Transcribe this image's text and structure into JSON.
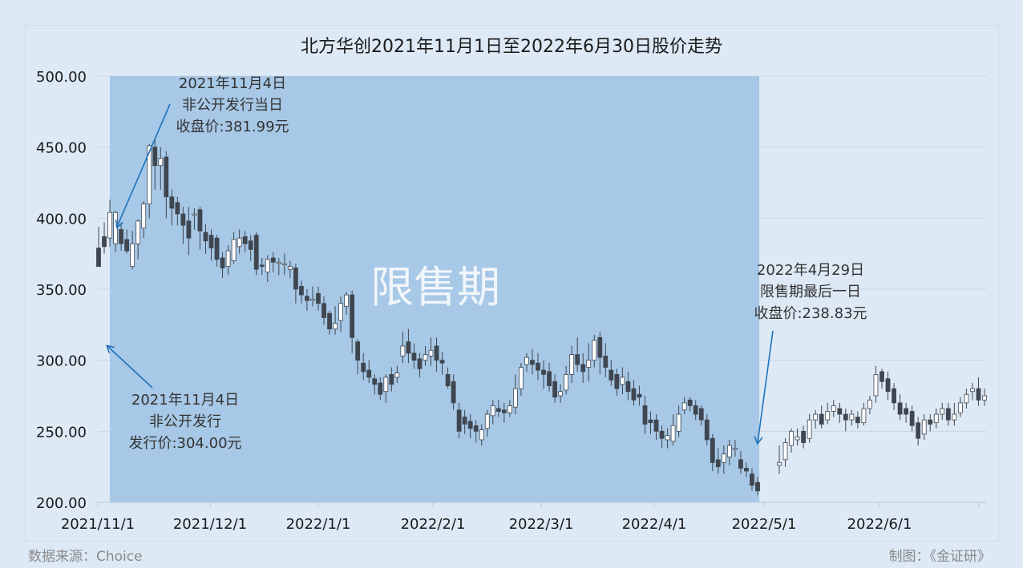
{
  "chart_data": {
    "type": "candlestick",
    "title": "北方华创2021年11月1日至2022年6月30日股价走势",
    "ylim": [
      200,
      500
    ],
    "yticks": [
      "500.00",
      "450.00",
      "400.00",
      "350.00",
      "300.00",
      "250.00",
      "200.00"
    ],
    "xticks": [
      "2021/11/1",
      "2021/12/1",
      "2022/1/1",
      "2022/2/1",
      "2022/3/1",
      "2022/4/1",
      "2022/5/1",
      "2022/6/1"
    ],
    "shaded_region": {
      "from": "2021/11/4",
      "to": "2022/4/29",
      "label": "限售期"
    },
    "annotations": [
      {
        "lines": [
          "2021年11月4日",
          "非公开发行当日",
          "收盘价:381.99元"
        ],
        "target": 381.99
      },
      {
        "lines": [
          "2021年11月4日",
          "非公开发行",
          "发行价:304.00元"
        ],
        "target": 304.0
      },
      {
        "lines": [
          "2022年4月29日",
          "限售期最后一日",
          "收盘价:238.83元"
        ],
        "target": 238.83
      }
    ],
    "candles": [
      [
        379,
        366,
        369,
        394
      ],
      [
        387,
        380,
        375,
        397
      ],
      [
        386,
        404,
        380,
        413
      ],
      [
        382,
        404,
        376,
        405
      ],
      [
        392,
        382,
        377,
        397
      ],
      [
        385,
        377,
        375,
        392
      ],
      [
        366,
        382,
        364,
        391
      ],
      [
        382,
        398,
        371,
        399
      ],
      [
        393,
        410,
        386,
        412
      ],
      [
        410,
        451,
        400,
        452
      ],
      [
        450,
        437,
        420,
        455
      ],
      [
        437,
        442,
        420,
        450
      ],
      [
        443,
        415,
        400,
        447
      ],
      [
        415,
        407,
        395,
        420
      ],
      [
        411,
        403,
        395,
        415
      ],
      [
        403,
        395,
        382,
        408
      ],
      [
        398,
        386,
        374,
        408
      ],
      [
        403,
        403,
        392,
        407
      ],
      [
        406,
        391,
        378,
        408
      ],
      [
        390,
        384,
        375,
        396
      ],
      [
        388,
        379,
        370,
        392
      ],
      [
        386,
        371,
        366,
        388
      ],
      [
        372,
        365,
        358,
        376
      ],
      [
        366,
        377,
        360,
        381
      ],
      [
        370,
        385,
        368,
        390
      ],
      [
        380,
        386,
        375,
        392
      ],
      [
        387,
        382,
        376,
        391
      ],
      [
        384,
        378,
        370,
        388
      ],
      [
        388,
        364,
        360,
        390
      ],
      [
        367,
        366,
        360,
        372
      ],
      [
        362,
        371,
        355,
        374
      ],
      [
        372,
        369,
        362,
        376
      ],
      [
        369,
        369,
        360,
        372
      ],
      [
        368,
        368,
        360,
        375
      ],
      [
        364,
        366,
        358,
        370
      ],
      [
        365,
        350,
        340,
        368
      ],
      [
        352,
        346,
        340,
        356
      ],
      [
        345,
        342,
        335,
        350
      ],
      [
        343,
        343,
        338,
        352
      ],
      [
        347,
        340,
        335,
        352
      ],
      [
        340,
        330,
        325,
        345
      ],
      [
        333,
        322,
        318,
        335
      ],
      [
        322,
        326,
        318,
        338
      ],
      [
        328,
        340,
        320,
        345
      ],
      [
        338,
        346,
        332,
        348
      ],
      [
        346,
        316,
        305,
        349
      ],
      [
        313,
        300,
        290,
        315
      ],
      [
        298,
        292,
        286,
        305
      ],
      [
        293,
        288,
        284,
        300
      ],
      [
        287,
        283,
        276,
        290
      ],
      [
        284,
        276,
        272,
        288
      ],
      [
        278,
        288,
        270,
        290
      ],
      [
        290,
        283,
        278,
        295
      ],
      [
        288,
        291,
        284,
        296
      ],
      [
        303,
        310,
        298,
        320
      ],
      [
        313,
        305,
        298,
        322
      ],
      [
        305,
        300,
        294,
        312
      ],
      [
        301,
        294,
        288,
        305
      ],
      [
        300,
        304,
        296,
        310
      ],
      [
        303,
        307,
        296,
        316
      ],
      [
        310,
        300,
        292,
        316
      ],
      [
        300,
        298,
        290,
        306
      ],
      [
        290,
        282,
        280,
        295
      ],
      [
        285,
        270,
        265,
        290
      ],
      [
        265,
        250,
        245,
        270
      ],
      [
        260,
        255,
        248,
        265
      ],
      [
        257,
        252,
        245,
        262
      ],
      [
        254,
        250,
        242,
        258
      ],
      [
        244,
        251,
        240,
        255
      ],
      [
        252,
        262,
        246,
        265
      ],
      [
        261,
        268,
        255,
        272
      ],
      [
        266,
        264,
        260,
        272
      ],
      [
        265,
        263,
        256,
        270
      ],
      [
        263,
        268,
        260,
        272
      ],
      [
        267,
        280,
        262,
        290
      ],
      [
        280,
        295,
        275,
        298
      ],
      [
        297,
        302,
        292,
        305
      ],
      [
        300,
        297,
        290,
        308
      ],
      [
        298,
        293,
        286,
        305
      ],
      [
        293,
        290,
        280,
        300
      ],
      [
        292,
        282,
        278,
        298
      ],
      [
        285,
        274,
        270,
        290
      ],
      [
        275,
        278,
        270,
        283
      ],
      [
        279,
        290,
        276,
        296
      ],
      [
        290,
        304,
        284,
        310
      ],
      [
        304,
        297,
        292,
        316
      ],
      [
        297,
        292,
        284,
        305
      ],
      [
        295,
        300,
        285,
        312
      ],
      [
        300,
        314,
        295,
        318
      ],
      [
        316,
        302,
        290,
        320
      ],
      [
        303,
        295,
        288,
        312
      ],
      [
        293,
        286,
        282,
        300
      ],
      [
        290,
        280,
        275,
        294
      ],
      [
        283,
        288,
        276,
        295
      ],
      [
        285,
        278,
        272,
        292
      ],
      [
        280,
        272,
        268,
        286
      ],
      [
        276,
        274,
        268,
        282
      ],
      [
        268,
        255,
        248,
        275
      ],
      [
        258,
        256,
        248,
        264
      ],
      [
        258,
        250,
        244,
        262
      ],
      [
        250,
        245,
        238,
        254
      ],
      [
        244,
        247,
        238,
        252
      ],
      [
        243,
        254,
        240,
        262
      ],
      [
        250,
        262,
        246,
        268
      ],
      [
        265,
        270,
        262,
        274
      ],
      [
        272,
        268,
        264,
        274
      ],
      [
        268,
        262,
        258,
        272
      ],
      [
        266,
        258,
        254,
        268
      ],
      [
        258,
        244,
        240,
        262
      ],
      [
        245,
        228,
        222,
        248
      ],
      [
        230,
        225,
        220,
        238
      ],
      [
        228,
        234,
        220,
        240
      ],
      [
        232,
        240,
        226,
        244
      ],
      [
        238,
        238,
        232,
        244
      ],
      [
        230,
        224,
        220,
        236
      ],
      [
        224,
        222,
        218,
        228
      ],
      [
        220,
        212,
        208,
        224
      ],
      [
        214,
        208,
        205,
        218
      ],
      [
        226,
        228,
        220,
        240
      ],
      [
        230,
        242,
        225,
        245
      ],
      [
        240,
        250,
        235,
        252
      ],
      [
        244,
        246,
        240,
        252
      ],
      [
        250,
        242,
        238,
        254
      ],
      [
        245,
        258,
        242,
        262
      ],
      [
        258,
        262,
        252,
        265
      ],
      [
        262,
        255,
        252,
        268
      ],
      [
        258,
        264,
        255,
        270
      ],
      [
        264,
        268,
        260,
        272
      ],
      [
        266,
        262,
        256,
        270
      ],
      [
        262,
        258,
        250,
        266
      ],
      [
        258,
        262,
        254,
        265
      ],
      [
        260,
        256,
        252,
        264
      ],
      [
        256,
        266,
        254,
        270
      ],
      [
        266,
        272,
        262,
        275
      ],
      [
        275,
        290,
        270,
        296
      ],
      [
        292,
        285,
        280,
        294
      ],
      [
        287,
        278,
        272,
        292
      ],
      [
        280,
        270,
        265,
        284
      ],
      [
        270,
        262,
        258,
        276
      ],
      [
        266,
        262,
        256,
        270
      ],
      [
        264,
        254,
        250,
        268
      ],
      [
        256,
        245,
        240,
        260
      ],
      [
        248,
        258,
        244,
        262
      ],
      [
        258,
        255,
        250,
        262
      ],
      [
        256,
        262,
        252,
        266
      ],
      [
        262,
        266,
        258,
        270
      ],
      [
        266,
        258,
        254,
        270
      ],
      [
        258,
        262,
        254,
        270
      ],
      [
        263,
        270,
        260,
        274
      ],
      [
        270,
        276,
        266,
        280
      ],
      [
        278,
        280,
        272,
        284
      ],
      [
        280,
        272,
        268,
        288
      ],
      [
        272,
        275,
        268,
        280
      ]
    ]
  },
  "footer": {
    "source": "数据来源：Choice",
    "credit": "制图：《金证研》"
  }
}
